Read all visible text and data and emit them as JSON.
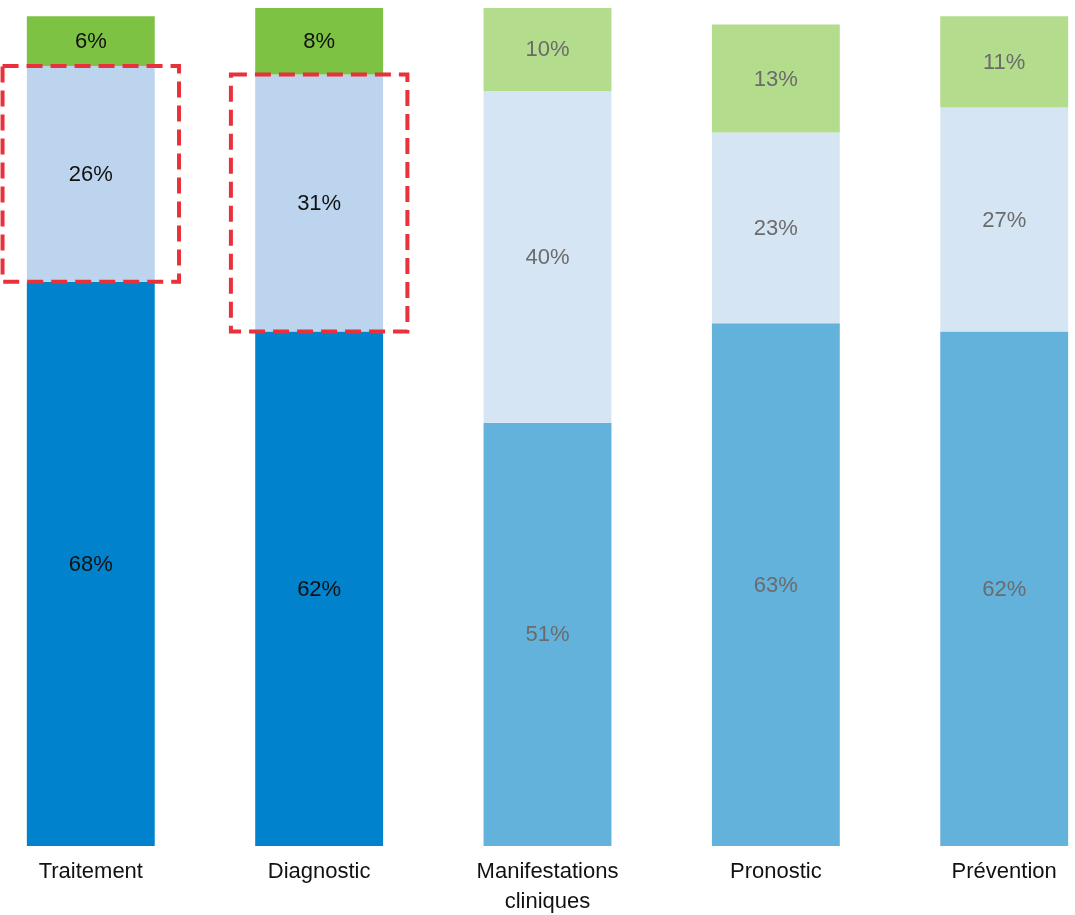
{
  "chart_data": {
    "type": "bar",
    "stacked": true,
    "categories": [
      "Traitement",
      "Diagnostic",
      "Manifestations cliniques",
      "Pronostic",
      "Prévention"
    ],
    "series": [
      {
        "values": [
          68,
          62,
          51,
          63,
          62
        ],
        "value_labels": [
          "68%",
          "62%",
          "51%",
          "63%",
          "62%"
        ],
        "colors": [
          "#0082cc",
          "#0082cc",
          "#63b2dc",
          "#63b2dc",
          "#63b2dc"
        ]
      },
      {
        "values": [
          26,
          31,
          40,
          23,
          27
        ],
        "value_labels": [
          "26%",
          "31%",
          "40%",
          "23%",
          "27%"
        ],
        "colors": [
          "#bcd4ed",
          "#bcd4ed",
          "#d6e5f4",
          "#d6e5f4",
          "#d6e5f4"
        ]
      },
      {
        "values": [
          6,
          8,
          10,
          13,
          11
        ],
        "value_labels": [
          "6%",
          "8%",
          "10%",
          "13%",
          "11%"
        ],
        "colors": [
          "#7dc242",
          "#7dc242",
          "#b3dc8c",
          "#b3dc8c",
          "#b3dc8c"
        ]
      }
    ]
  }
}
